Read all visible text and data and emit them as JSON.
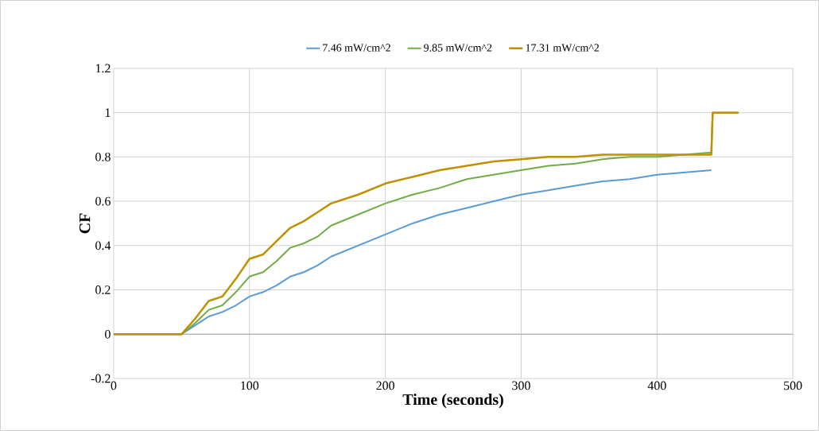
{
  "chart_data": {
    "type": "line",
    "xlabel": "Time (seconds)",
    "ylabel": "CF",
    "x": [
      0,
      50,
      60,
      70,
      80,
      90,
      100,
      110,
      120,
      130,
      140,
      150,
      160,
      180,
      200,
      220,
      240,
      260,
      280,
      300,
      320,
      340,
      360,
      380,
      400,
      420,
      440,
      441,
      460
    ],
    "series": [
      {
        "name": "7.46 mW/cm^2",
        "color": "#5b9bd5",
        "values": [
          0,
          0,
          0.04,
          0.08,
          0.1,
          0.13,
          0.17,
          0.19,
          0.22,
          0.26,
          0.28,
          0.31,
          0.35,
          0.4,
          0.45,
          0.5,
          0.54,
          0.57,
          0.6,
          0.63,
          0.65,
          0.67,
          0.69,
          0.7,
          0.72,
          0.73,
          0.74,
          null,
          null
        ]
      },
      {
        "name": "9.85 mW/cm^2",
        "color": "#70ad47",
        "values": [
          0,
          0,
          0.05,
          0.11,
          0.13,
          0.19,
          0.26,
          0.28,
          0.33,
          0.39,
          0.41,
          0.44,
          0.49,
          0.54,
          0.59,
          0.63,
          0.66,
          0.7,
          0.72,
          0.74,
          0.76,
          0.77,
          0.79,
          0.8,
          0.8,
          0.81,
          0.82,
          1.0,
          1.0
        ]
      },
      {
        "name": "17.31 mW/cm^2",
        "color": "#bf9000",
        "values": [
          0,
          0,
          0.07,
          0.15,
          0.17,
          0.25,
          0.34,
          0.36,
          0.42,
          0.48,
          0.51,
          0.55,
          0.59,
          0.63,
          0.68,
          0.71,
          0.74,
          0.76,
          0.78,
          0.79,
          0.8,
          0.8,
          0.81,
          0.81,
          0.81,
          0.81,
          0.81,
          1.0,
          1.0
        ]
      }
    ],
    "xlim": [
      0,
      500
    ],
    "xticks": [
      0,
      100,
      200,
      300,
      400,
      500
    ],
    "ylim": [
      -0.2,
      1.2
    ],
    "yticks": [
      -0.2,
      0,
      0.2,
      0.4,
      0.6,
      0.8,
      1,
      1.2
    ],
    "grid": true,
    "legend": "top",
    "marker": "none",
    "line_style": "solid"
  }
}
